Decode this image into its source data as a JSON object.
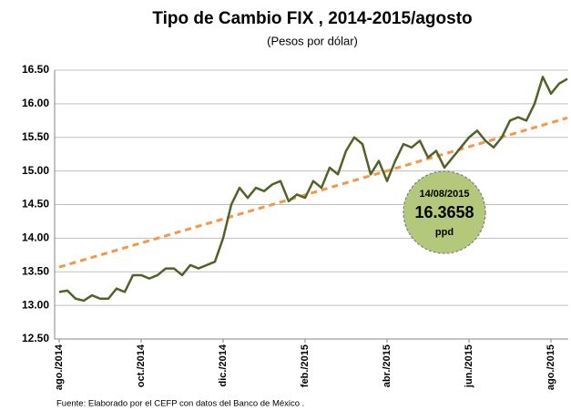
{
  "chart_data": {
    "type": "line",
    "title": "Tipo de Cambio FIX , 2014-2015/agosto",
    "subtitle": "(Pesos por dólar)",
    "source": "Fuente: Elaborado por el CEFP con datos del Banco de México .",
    "categories": [
      "ago./2014",
      null,
      null,
      null,
      null,
      null,
      null,
      null,
      null,
      null,
      "oct./2014",
      null,
      null,
      null,
      null,
      null,
      null,
      null,
      null,
      null,
      "dic./2014",
      null,
      null,
      null,
      null,
      null,
      null,
      null,
      null,
      null,
      "feb./2015",
      null,
      null,
      null,
      null,
      null,
      null,
      null,
      null,
      null,
      "abr./2015",
      null,
      null,
      null,
      null,
      null,
      null,
      null,
      null,
      null,
      "jun./2015",
      null,
      null,
      null,
      null,
      null,
      null,
      null,
      null,
      null,
      "ago./2015",
      null,
      null
    ],
    "series": [
      {
        "color": "#4f6228",
        "values": [
          13.2,
          13.22,
          13.1,
          13.07,
          13.15,
          13.1,
          13.1,
          13.25,
          13.2,
          13.45,
          13.45,
          13.4,
          13.45,
          13.55,
          13.55,
          13.45,
          13.6,
          13.55,
          13.6,
          13.65,
          14.0,
          14.5,
          14.75,
          14.6,
          14.75,
          14.7,
          14.8,
          14.85,
          14.55,
          14.65,
          14.6,
          14.85,
          14.75,
          15.05,
          14.95,
          15.3,
          15.5,
          15.4,
          14.95,
          15.15,
          14.85,
          15.15,
          15.4,
          15.35,
          15.45,
          15.2,
          15.3,
          15.05,
          15.2,
          15.35,
          15.5,
          15.6,
          15.45,
          15.35,
          15.5,
          15.75,
          15.8,
          15.75,
          16.0,
          16.4,
          16.15,
          16.3,
          16.37
        ]
      }
    ],
    "trend": {
      "color": "#f79646",
      "values": [
        13.57,
        15.79
      ]
    },
    "annotation": {
      "date": "14/08/2015",
      "value": "16.3658",
      "unit": "ppd",
      "color": "#b3c87a"
    },
    "ylim": [
      12.5,
      16.5
    ],
    "yticks": [
      {
        "value": 12.5,
        "label": "12.50"
      },
      {
        "value": 13,
        "label": "13.00"
      },
      {
        "value": 13.5,
        "label": "13.50"
      },
      {
        "value": 14,
        "label": "14.00"
      },
      {
        "value": 14.5,
        "label": "14.50"
      },
      {
        "value": 15,
        "label": "15.00"
      },
      {
        "value": 15.5,
        "label": "15.50"
      },
      {
        "value": 16,
        "label": "16.00"
      },
      {
        "value": 16.5,
        "label": "16.50"
      }
    ],
    "grid": true
  }
}
